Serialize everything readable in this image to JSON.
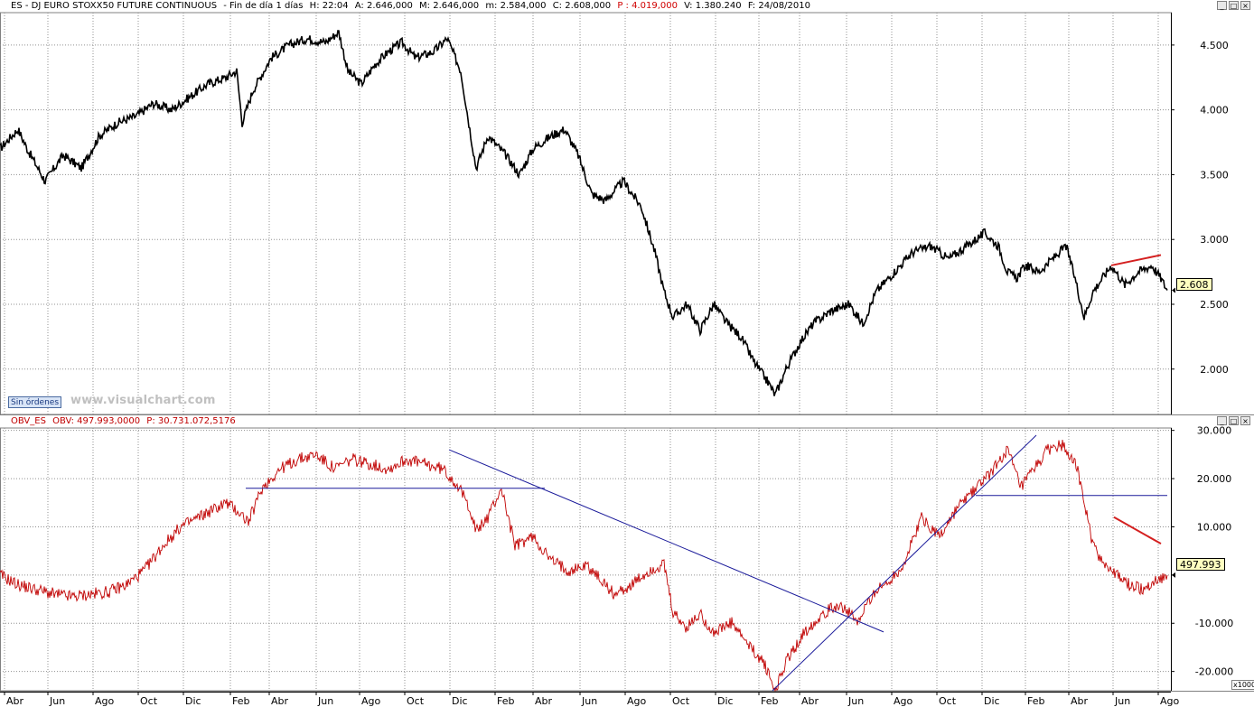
{
  "top_panel": {
    "title": {
      "symbol": "ES - DJ EURO STOXX50 FUTURE CONTINUOUS",
      "period": "- Fin de día 1 días",
      "high": "H: 22:04",
      "open": "A: 2.646,000",
      "max": "M: 2.646,000",
      "min": "m: 2.584,000",
      "close": "C: 2.608,000",
      "p": "P : 4.019,000",
      "volume": "V: 1.380.240",
      "date": "F: 24/08/2010"
    },
    "sin_ordenes_label": "Sin órdenes",
    "watermark": "www.visualchart.com",
    "last_value_badge": "2.608",
    "colors": {
      "price": "#000000",
      "trendline": "#d42020",
      "grid": "#808080"
    }
  },
  "bottom_panel": {
    "title": {
      "name": "OBV_ES",
      "obv": "OBV: 497.993,0000",
      "p": "P: 30.731.072,5176"
    },
    "last_value_badge": "497.993",
    "scale_label": "x1000",
    "colors": {
      "obv": "#c00000",
      "trendlines": "#1a1a9a",
      "red_trendline": "#d42020"
    }
  },
  "window_buttons": {
    "minimize": "_",
    "maximize": "□",
    "close": "×"
  },
  "chart_data": [
    {
      "type": "line",
      "name": "price",
      "y_ticks": [
        "4.500",
        "4.000",
        "3.500",
        "3.000",
        "2.500",
        "2.000"
      ],
      "y_tick_values": [
        4500,
        4000,
        3500,
        3000,
        2500,
        2000
      ],
      "ylim": [
        1650,
        4750
      ],
      "xlim": [
        0,
        1296
      ],
      "grid": true,
      "x_index": [
        0,
        20,
        30,
        50,
        70,
        90,
        110,
        130,
        150,
        170,
        190,
        210,
        230,
        250,
        262,
        268,
        280,
        300,
        320,
        340,
        360,
        375,
        385,
        400,
        415,
        430,
        445,
        460,
        480,
        495,
        510,
        520,
        527,
        540,
        560,
        575,
        590,
        610,
        625,
        640,
        655,
        670,
        690,
        710,
        725,
        735,
        745,
        760,
        775,
        790,
        805,
        820,
        835,
        850,
        858,
        870,
        885,
        900,
        920,
        940,
        955,
        970,
        990,
        1010,
        1030,
        1050,
        1070,
        1090,
        1105,
        1115,
        1125,
        1135,
        1150,
        1165,
        1180,
        1190,
        1200,
        1210,
        1220,
        1230,
        1245,
        1260,
        1275,
        1285,
        1292
      ],
      "values": [
        3700,
        3850,
        3700,
        3450,
        3650,
        3550,
        3800,
        3900,
        3950,
        4050,
        4000,
        4100,
        4200,
        4250,
        4300,
        3900,
        4150,
        4400,
        4500,
        4550,
        4520,
        4600,
        4300,
        4200,
        4350,
        4450,
        4520,
        4400,
        4450,
        4550,
        4300,
        3850,
        3550,
        3800,
        3650,
        3500,
        3700,
        3800,
        3850,
        3650,
        3350,
        3300,
        3450,
        3250,
        2900,
        2600,
        2400,
        2500,
        2300,
        2500,
        2350,
        2250,
        2050,
        1900,
        1800,
        2000,
        2200,
        2350,
        2450,
        2500,
        2350,
        2600,
        2750,
        2900,
        2950,
        2850,
        2950,
        3050,
        2950,
        2750,
        2700,
        2800,
        2750,
        2850,
        2950,
        2700,
        2400,
        2600,
        2700,
        2800,
        2650,
        2750,
        2800,
        2700,
        2608
      ],
      "trendline": {
        "x_index": [
          1230,
          1285
        ],
        "values": [
          2800,
          2880
        ]
      }
    },
    {
      "type": "line",
      "name": "OBV",
      "y_ticks": [
        "30.000",
        "20.000",
        "10.000",
        "",
        "-10.000",
        "-20.000"
      ],
      "y_tick_values": [
        30000,
        20000,
        10000,
        0,
        -10000,
        -20000
      ],
      "ylim": [
        -24000,
        30500
      ],
      "xlim": [
        0,
        1296
      ],
      "grid": true,
      "x_index": [
        0,
        20,
        40,
        60,
        80,
        100,
        120,
        140,
        160,
        180,
        200,
        220,
        250,
        265,
        275,
        290,
        310,
        330,
        350,
        370,
        390,
        410,
        430,
        450,
        470,
        490,
        505,
        520,
        527,
        540,
        555,
        570,
        590,
        610,
        630,
        650,
        665,
        680,
        700,
        720,
        735,
        745,
        760,
        775,
        790,
        810,
        830,
        845,
        858,
        870,
        890,
        910,
        930,
        950,
        965,
        980,
        1000,
        1020,
        1040,
        1060,
        1080,
        1100,
        1115,
        1130,
        1145,
        1160,
        1175,
        1190,
        1200,
        1210,
        1220,
        1235,
        1250,
        1265,
        1280,
        1292
      ],
      "values": [
        0,
        -2000,
        -3000,
        -4000,
        -4500,
        -4000,
        -3500,
        -2000,
        1000,
        6000,
        10000,
        12000,
        15000,
        13000,
        11000,
        18000,
        22000,
        24000,
        25000,
        22000,
        24000,
        23000,
        22000,
        24000,
        23000,
        22000,
        19000,
        14000,
        9000,
        12000,
        18000,
        6000,
        8000,
        3000,
        1000,
        2000,
        -1000,
        -4000,
        -2000,
        1000,
        2000,
        -8000,
        -11000,
        -8000,
        -12000,
        -10000,
        -15000,
        -18000,
        -24000,
        -18000,
        -12000,
        -8000,
        -6000,
        -10000,
        -4000,
        -2000,
        2000,
        12000,
        8000,
        14000,
        18000,
        22000,
        26000,
        18000,
        22000,
        26000,
        27000,
        24000,
        15000,
        6000,
        3000,
        0,
        -2000,
        -3000,
        -1000,
        0
      ],
      "trendlines": [
        {
          "x_index": [
            272,
            603
          ],
          "values": [
            18000,
            18000
          ]
        },
        {
          "x_index": [
            497,
            978
          ],
          "values": [
            26000,
            -11800
          ]
        },
        {
          "x_index": [
            855,
            1147
          ],
          "values": [
            -24000,
            29000
          ]
        },
        {
          "x_index": [
            1080,
            1292
          ],
          "values": [
            16500,
            16500
          ]
        }
      ],
      "red_trendline": {
        "x_index": [
          1233,
          1285
        ],
        "values": [
          12000,
          6500
        ]
      }
    }
  ],
  "x_axis": {
    "tick_labels": [
      "Abr",
      "Jun",
      "Ago",
      "Oct",
      "Dic",
      "Feb",
      "Abr",
      "Jun",
      "Ago",
      "Oct",
      "Dic",
      "Feb",
      "Abr",
      "Jun",
      "Ago",
      "Oct",
      "Dic",
      "Feb",
      "Abr",
      "Jun",
      "Ago",
      "Oct",
      "Dic",
      "Feb",
      "Abr",
      "Jun",
      "Ago"
    ],
    "tick_index": [
      5,
      53,
      103,
      153,
      203,
      255,
      298,
      350,
      398,
      448,
      498,
      548,
      590,
      642,
      692,
      742,
      792,
      840,
      885,
      937,
      987,
      1037,
      1087,
      1135,
      1183,
      1232,
      1282
    ]
  }
}
